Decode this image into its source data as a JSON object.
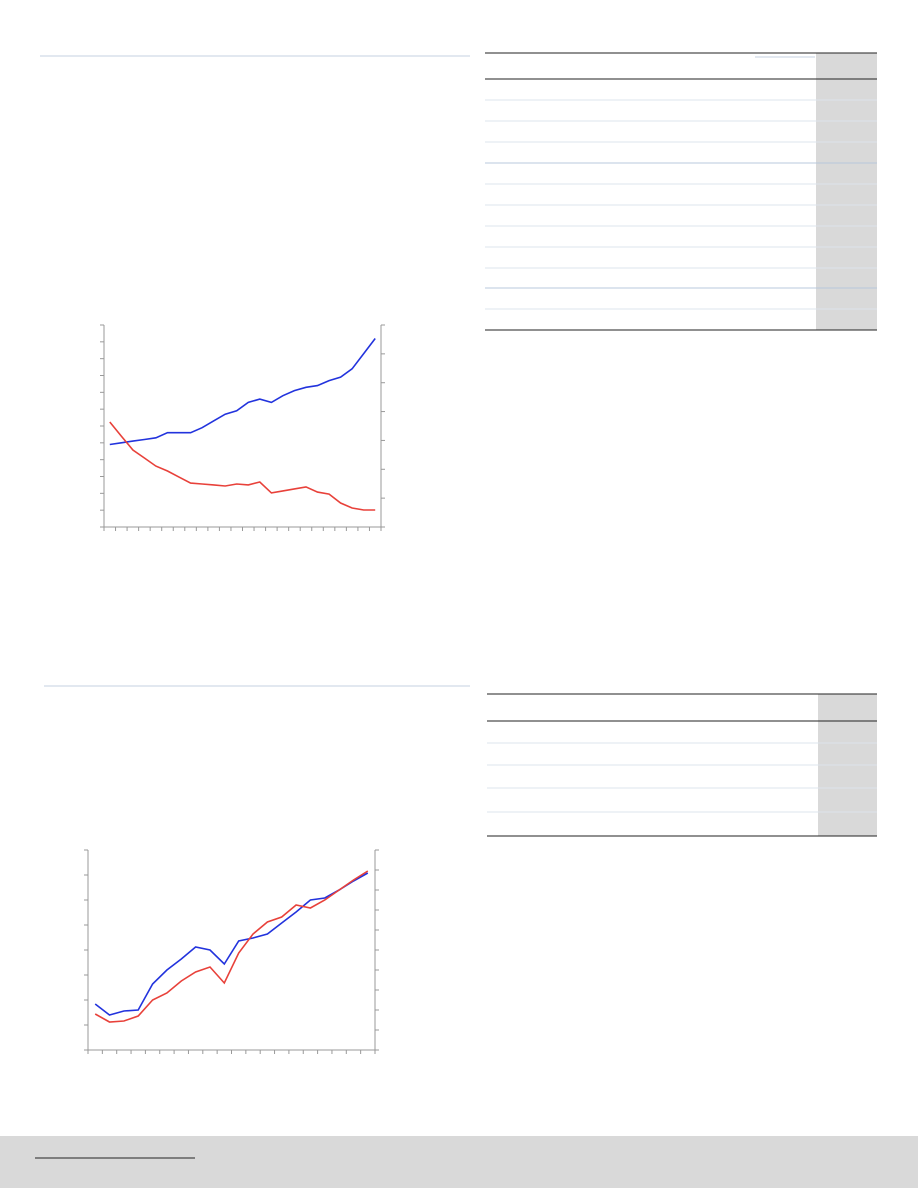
{
  "chart_data": [
    {
      "type": "line",
      "x": [
        0.5,
        1.5,
        2.5,
        3.5,
        4.5,
        5.5,
        6.5,
        7.5,
        8.5,
        9.5,
        10.5,
        11.5,
        12.5,
        13.5,
        14.5,
        15.5,
        16.5,
        17.5,
        18.5,
        19.5,
        20.5,
        21.5,
        22.5,
        23.5
      ],
      "xlim": [
        0,
        24
      ],
      "xticks": [
        0,
        1,
        2,
        3,
        4,
        5,
        6,
        7,
        8,
        9,
        10,
        11,
        12,
        13,
        14,
        15,
        16,
        17,
        18,
        19,
        20,
        21,
        22,
        23,
        24
      ],
      "ylim": [
        0,
        12
      ],
      "yticks": [
        0,
        1,
        2,
        3,
        4,
        5,
        6,
        7,
        8,
        9,
        10,
        11,
        12
      ],
      "y2lim": [
        0,
        7
      ],
      "y2ticks": [
        0,
        1,
        2,
        3,
        4,
        5,
        6,
        7
      ],
      "series": [
        {
          "color": "#2233dd",
          "values": [
            4.9,
            5.0,
            5.1,
            5.2,
            5.3,
            5.6,
            5.6,
            5.6,
            5.9,
            6.3,
            6.7,
            6.9,
            7.4,
            7.6,
            7.4,
            7.8,
            8.1,
            8.3,
            8.4,
            8.7,
            8.9,
            9.4,
            10.3,
            11.2
          ]
        },
        {
          "color": "#e8413a",
          "axis": "y2",
          "values": [
            3.64,
            3.15,
            2.67,
            2.39,
            2.11,
            1.94,
            1.73,
            1.52,
            1.49,
            1.46,
            1.42,
            1.49,
            1.46,
            1.56,
            1.18,
            1.25,
            1.32,
            1.39,
            1.21,
            1.14,
            0.83,
            0.66,
            0.59,
            0.59
          ]
        }
      ]
    },
    {
      "type": "line",
      "x": [
        0.5,
        1.5,
        2.5,
        3.5,
        4.5,
        5.5,
        6.5,
        7.5,
        8.5,
        9.5,
        10.5,
        11.5,
        12.5,
        13.5,
        14.5,
        15.5,
        16.5,
        17.5,
        18.5,
        19.5
      ],
      "xlim": [
        0,
        20
      ],
      "xticks": [
        0,
        1,
        2,
        3,
        4,
        5,
        6,
        7,
        8,
        9,
        10,
        11,
        12,
        13,
        14,
        15,
        16,
        17,
        18,
        19,
        20
      ],
      "ylim": [
        0,
        8
      ],
      "yticks": [
        0,
        1,
        2,
        3,
        4,
        5,
        6,
        7,
        8
      ],
      "y2lim": [
        0,
        10
      ],
      "y2ticks": [
        0,
        1,
        2,
        3,
        4,
        5,
        6,
        7,
        8,
        9,
        10
      ],
      "series": [
        {
          "color": "#2233dd",
          "values": [
            1.84,
            1.4,
            1.56,
            1.6,
            2.64,
            3.2,
            3.64,
            4.12,
            4.0,
            3.44,
            4.36,
            4.48,
            4.64,
            5.08,
            5.52,
            6.0,
            6.08,
            6.4,
            6.76,
            7.08
          ]
        },
        {
          "color": "#e8413a",
          "axis": "y2",
          "values": [
            1.8,
            1.4,
            1.45,
            1.7,
            2.5,
            2.85,
            3.45,
            3.9,
            4.15,
            3.35,
            4.85,
            5.8,
            6.4,
            6.65,
            7.25,
            7.1,
            7.5,
            8.0,
            8.5,
            8.95
          ]
        }
      ]
    }
  ]
}
